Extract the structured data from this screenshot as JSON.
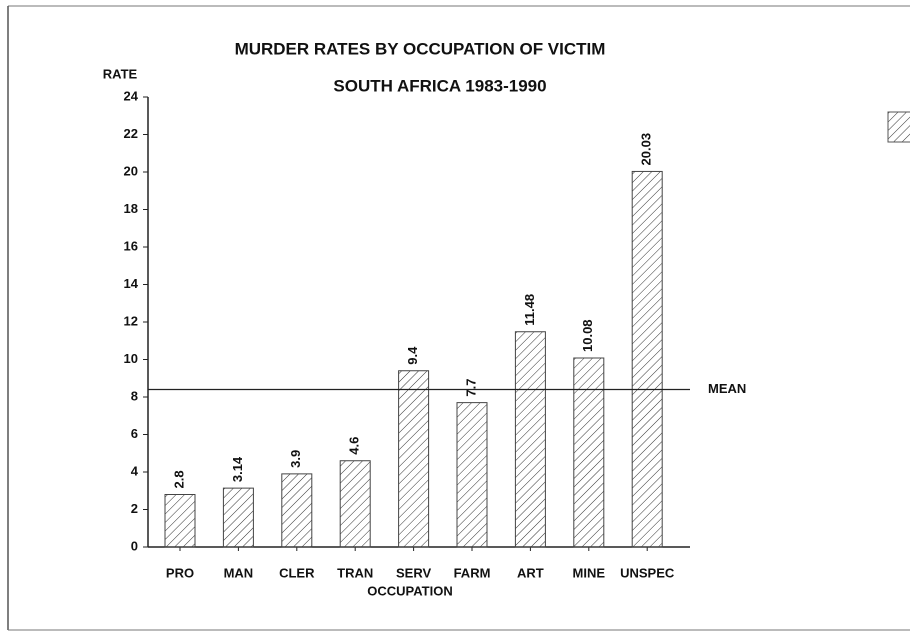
{
  "chart_data": {
    "type": "bar",
    "title": "MURDER RATES BY OCCUPATION OF VICTIM",
    "subtitle": "SOUTH AFRICA 1983-1990",
    "ylabel": "RATE",
    "xlabel": "OCCUPATION",
    "categories": [
      "PRO",
      "MAN",
      "CLER",
      "TRAN",
      "SERV",
      "FARM",
      "ART",
      "MINE",
      "UNSPEC"
    ],
    "values": [
      2.8,
      3.14,
      3.9,
      4.6,
      9.4,
      7.7,
      11.48,
      10.08,
      20.03
    ],
    "color": "#333333",
    "ylim": [
      0,
      24
    ],
    "yticks": [
      0,
      2,
      4,
      6,
      8,
      10,
      12,
      14,
      16,
      18,
      20,
      22,
      24
    ],
    "mean": 8.4,
    "mean_label": "MEAN"
  }
}
